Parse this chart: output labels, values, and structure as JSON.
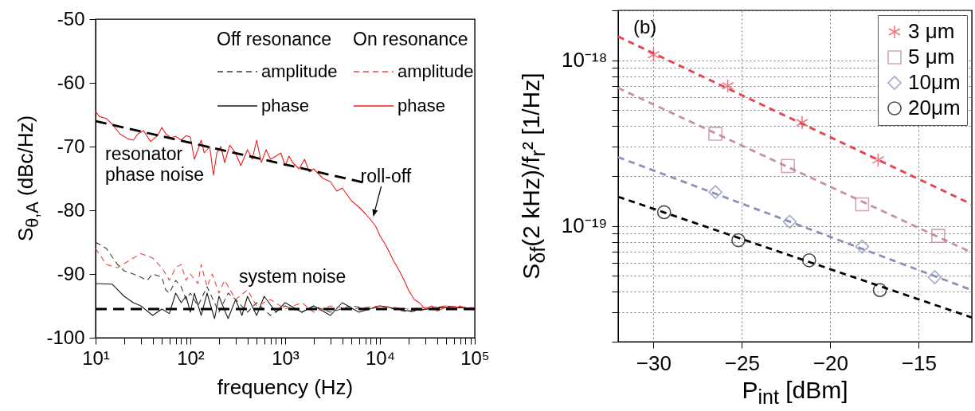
{
  "chart_data": [
    {
      "type": "line",
      "xlabel": "frequency (Hz)",
      "ylabel": "S$_{θ,A}$ (dBc/Hz)",
      "log": "x",
      "xlim": [
        10,
        100000
      ],
      "ylim": [
        -100,
        -50
      ],
      "xticks": [
        {
          "value": 10,
          "label": "10¹"
        },
        {
          "value": 20,
          "label": null
        },
        {
          "value": 30,
          "label": null
        },
        {
          "value": 40,
          "label": null
        },
        {
          "value": 50,
          "label": null
        },
        {
          "value": 60,
          "label": null
        },
        {
          "value": 70,
          "label": null
        },
        {
          "value": 80,
          "label": null
        },
        {
          "value": 90,
          "label": null
        },
        {
          "value": 100,
          "label": "10²"
        },
        {
          "value": 200,
          "label": null
        },
        {
          "value": 300,
          "label": null
        },
        {
          "value": 400,
          "label": null
        },
        {
          "value": 500,
          "label": null
        },
        {
          "value": 600,
          "label": null
        },
        {
          "value": 700,
          "label": null
        },
        {
          "value": 800,
          "label": null
        },
        {
          "value": 900,
          "label": null
        },
        {
          "value": 1000,
          "label": "10³"
        },
        {
          "value": 2000,
          "label": null
        },
        {
          "value": 3000,
          "label": null
        },
        {
          "value": 4000,
          "label": null
        },
        {
          "value": 5000,
          "label": null
        },
        {
          "value": 6000,
          "label": null
        },
        {
          "value": 7000,
          "label": null
        },
        {
          "value": 8000,
          "label": null
        },
        {
          "value": 9000,
          "label": null
        },
        {
          "value": 10000,
          "label": "10⁴"
        },
        {
          "value": 20000,
          "label": null
        },
        {
          "value": 30000,
          "label": null
        },
        {
          "value": 40000,
          "label": null
        },
        {
          "value": 50000,
          "label": null
        },
        {
          "value": 60000,
          "label": null
        },
        {
          "value": 70000,
          "label": null
        },
        {
          "value": 80000,
          "label": null
        },
        {
          "value": 90000,
          "label": null
        },
        {
          "value": 100000,
          "label": "10⁵"
        }
      ],
      "yticks": [
        -100,
        -90,
        -80,
        -70,
        -60,
        -50
      ],
      "grid": false,
      "legend": "top right",
      "annotations": [
        "Off resonance",
        "On resonance",
        "resonator phase noise",
        {
          "text": "roll-off",
          "x": 8500,
          "y": -81
        },
        "system noise"
      ],
      "series": [
        {
          "name": "amplitude",
          "color": "#3a3a3a",
          "line_style": "dashed",
          "x": [
            10,
            13,
            17,
            20,
            25,
            30,
            35,
            40,
            50,
            55,
            60,
            70,
            80,
            90,
            100,
            120,
            150,
            200,
            250,
            300,
            400,
            500,
            700,
            1000,
            1500,
            2000,
            3000,
            5000,
            8000,
            10000,
            20000,
            50000,
            100000
          ],
          "values": [
            -85,
            -86,
            -88.5,
            -89.5,
            -90,
            -90.5,
            -91,
            -90,
            -90.5,
            -92.5,
            -93,
            -91,
            -92,
            -94,
            -93,
            -95,
            -92,
            -96,
            -93,
            -94,
            -96,
            -94.5,
            -96.5,
            -95,
            -96,
            -95,
            -96,
            -95,
            -95.5,
            -95,
            -96,
            -95,
            -95.5
          ]
        },
        {
          "name": "phase",
          "color": "#1a1a1a",
          "line_style": "solid",
          "x": [
            10,
            15,
            20,
            25,
            30,
            40,
            50,
            60,
            70,
            80,
            90,
            100,
            110,
            130,
            150,
            180,
            200,
            250,
            300,
            350,
            400,
            500,
            600,
            800,
            1000,
            1500,
            2000,
            3000,
            4000,
            6000,
            10000,
            20000,
            50000,
            100000
          ],
          "values": [
            -91.5,
            -91.6,
            -93.5,
            -94.5,
            -95,
            -96.5,
            -95.5,
            -96.2,
            -93,
            -94.5,
            -93.5,
            -96,
            -93,
            -96.5,
            -93,
            -97,
            -93.5,
            -97,
            -94,
            -96.5,
            -93.5,
            -96.5,
            -93.5,
            -96,
            -94.5,
            -96,
            -95,
            -96.5,
            -94.5,
            -96,
            -95,
            -95.8,
            -95.2,
            -95.4
          ]
        },
        {
          "name": "amplitude",
          "color": "#ee4444",
          "line_style": "dashed",
          "x": [
            10,
            13,
            17,
            22,
            30,
            40,
            50,
            60,
            70,
            80,
            90,
            100,
            120,
            130,
            150,
            170,
            200,
            230,
            300,
            400,
            500,
            700,
            1000,
            1500,
            2000,
            3000,
            5000,
            10000,
            20000,
            50000,
            100000
          ],
          "values": [
            -86,
            -88.5,
            -89,
            -88,
            -86.8,
            -87.5,
            -89,
            -91,
            -89,
            -88.5,
            -91,
            -90,
            -91.5,
            -88.5,
            -92,
            -90,
            -93,
            -91,
            -94,
            -92.5,
            -95,
            -94,
            -95.5,
            -94.5,
            -96,
            -95,
            -95.5,
            -95,
            -95.5,
            -95,
            -95.3
          ]
        },
        {
          "name": "phase",
          "color": "#ee1c1c",
          "line_style": "solid",
          "x": [
            10,
            11,
            13,
            15,
            18,
            22,
            25,
            28,
            32,
            38,
            45,
            50,
            55,
            62,
            70,
            80,
            90,
            100,
            110,
            120,
            130,
            140,
            160,
            175,
            190,
            210,
            230,
            260,
            300,
            340,
            400,
            450,
            500,
            560,
            630,
            700,
            800,
            900,
            1000,
            1100,
            1200,
            1400,
            1600,
            1800,
            2000,
            2500,
            3000,
            3500,
            4000,
            5000,
            6000,
            7000,
            8000,
            9000,
            10000,
            11000,
            12000,
            14000,
            16000,
            18000,
            20000,
            23000,
            26000,
            30000,
            35000,
            40000,
            50000,
            60000,
            70000,
            80000,
            100000
          ],
          "values": [
            -64.5,
            -65.3,
            -65.6,
            -66.5,
            -68,
            -68.8,
            -69,
            -68,
            -67.5,
            -69.2,
            -68.3,
            -67,
            -68,
            -68.6,
            -68.4,
            -69,
            -68.3,
            -68.5,
            -72,
            -70.5,
            -69,
            -71,
            -70,
            -74.5,
            -71,
            -70,
            -72.5,
            -69.8,
            -71,
            -73,
            -70.5,
            -72,
            -69,
            -72.5,
            -70.5,
            -72,
            -71.5,
            -71,
            -73,
            -71.5,
            -72.5,
            -73.5,
            -72,
            -74,
            -73.5,
            -75,
            -75.5,
            -77,
            -76.5,
            -78.5,
            -79.5,
            -80.5,
            -81.5,
            -82.5,
            -84,
            -85,
            -86,
            -88,
            -89.5,
            -91,
            -92.5,
            -94,
            -94.5,
            -95.5,
            -95,
            -95.8,
            -95.2,
            -95.6,
            -95,
            -95.5,
            -95.3
          ]
        },
        {
          "type": "line",
          "color": "#000000",
          "line_style": "dashed",
          "x": [
            10,
            7000
          ],
          "values": [
            -66,
            -75.7
          ]
        },
        {
          "type": "line",
          "color": "#000000",
          "line_style": "dashed",
          "x": [
            10,
            100000
          ],
          "values": [
            -95.5,
            -95.5
          ]
        }
      ]
    },
    {
      "type": "scatter",
      "xlabel": "P$_{int}$ [dBm]",
      "ylabel": "S$_{δf}$(2 kHz)/f$_{r}$² [1/Hz]",
      "log": "y",
      "xlim": [
        -32,
        -12
      ],
      "ylim": [
        2e-20,
        2e-18
      ],
      "xticks": [
        {
          "value": -30,
          "label": "−30"
        },
        {
          "value": -25,
          "label": "−25"
        },
        {
          "value": -20,
          "label": "−20"
        },
        {
          "value": -15,
          "label": "−15"
        }
      ],
      "yticks": [
        {
          "value": 2e-20,
          "label": null
        },
        {
          "value": 3e-20,
          "label": null
        },
        {
          "value": 4e-20,
          "label": null
        },
        {
          "value": 5e-20,
          "label": null
        },
        {
          "value": 6e-20,
          "label": null
        },
        {
          "value": 7e-20,
          "label": null
        },
        {
          "value": 8e-20,
          "label": null
        },
        {
          "value": 9e-20,
          "label": null
        },
        {
          "value": 1e-19,
          "label": "10⁻¹⁹"
        },
        {
          "value": 2e-19,
          "label": null
        },
        {
          "value": 3e-19,
          "label": null
        },
        {
          "value": 4e-19,
          "label": null
        },
        {
          "value": 5e-19,
          "label": null
        },
        {
          "value": 6e-19,
          "label": null
        },
        {
          "value": 7e-19,
          "label": null
        },
        {
          "value": 8e-19,
          "label": null
        },
        {
          "value": 9e-19,
          "label": null
        },
        {
          "value": 1e-18,
          "label": "10⁻¹⁸"
        },
        {
          "value": 2e-18,
          "label": null
        }
      ],
      "grid": true,
      "legend": "top right",
      "annotations": [
        "(b)"
      ],
      "series": [
        {
          "type": "line",
          "color": "#e84250",
          "line_style": "dashed",
          "x": [
            -32,
            -12
          ],
          "values": [
            1.39e-18,
            1.35e-19
          ]
        },
        {
          "type": "line",
          "color": "#c98fa8",
          "line_style": "dashed",
          "x": [
            -32,
            -12
          ],
          "values": [
            6.8e-19,
            6.9e-20
          ]
        },
        {
          "type": "line",
          "color": "#8890b8",
          "line_style": "dashed",
          "x": [
            -32,
            -12
          ],
          "values": [
            2.6e-19,
            4.1e-20
          ]
        },
        {
          "type": "line",
          "color": "#000000",
          "line_style": "dashed",
          "x": [
            -32,
            -12
          ],
          "values": [
            1.5e-19,
            2.8e-20
          ]
        },
        {
          "name": "3 μm",
          "color": "#e84250",
          "marker": "cross",
          "x": [
            -30,
            -25.8,
            -21.6,
            -17.3
          ],
          "values": [
            1.08e-18,
            7e-19,
            4.2e-19,
            2.5e-19
          ]
        },
        {
          "name": "5 μm",
          "color": "#c0809a",
          "marker": "square",
          "x": [
            -26.5,
            -22.4,
            -18.2,
            -13.9
          ],
          "values": [
            3.6e-19,
            2.3e-19,
            1.35e-19,
            8.7e-20
          ]
        },
        {
          "name": "10μm",
          "color": "#7f86b0",
          "marker": "diamond",
          "x": [
            -26.5,
            -22.3,
            -18.2,
            -14.1
          ],
          "values": [
            1.6e-19,
            1.06e-19,
            7.5e-20,
            4.9e-20
          ]
        },
        {
          "name": "20μm",
          "color": "#000000",
          "marker": "circle",
          "x": [
            -29.4,
            -25.2,
            -21.2,
            -17.2
          ],
          "values": [
            1.21e-19,
            8.2e-20,
            6.2e-20,
            4.1e-20
          ]
        }
      ]
    }
  ]
}
